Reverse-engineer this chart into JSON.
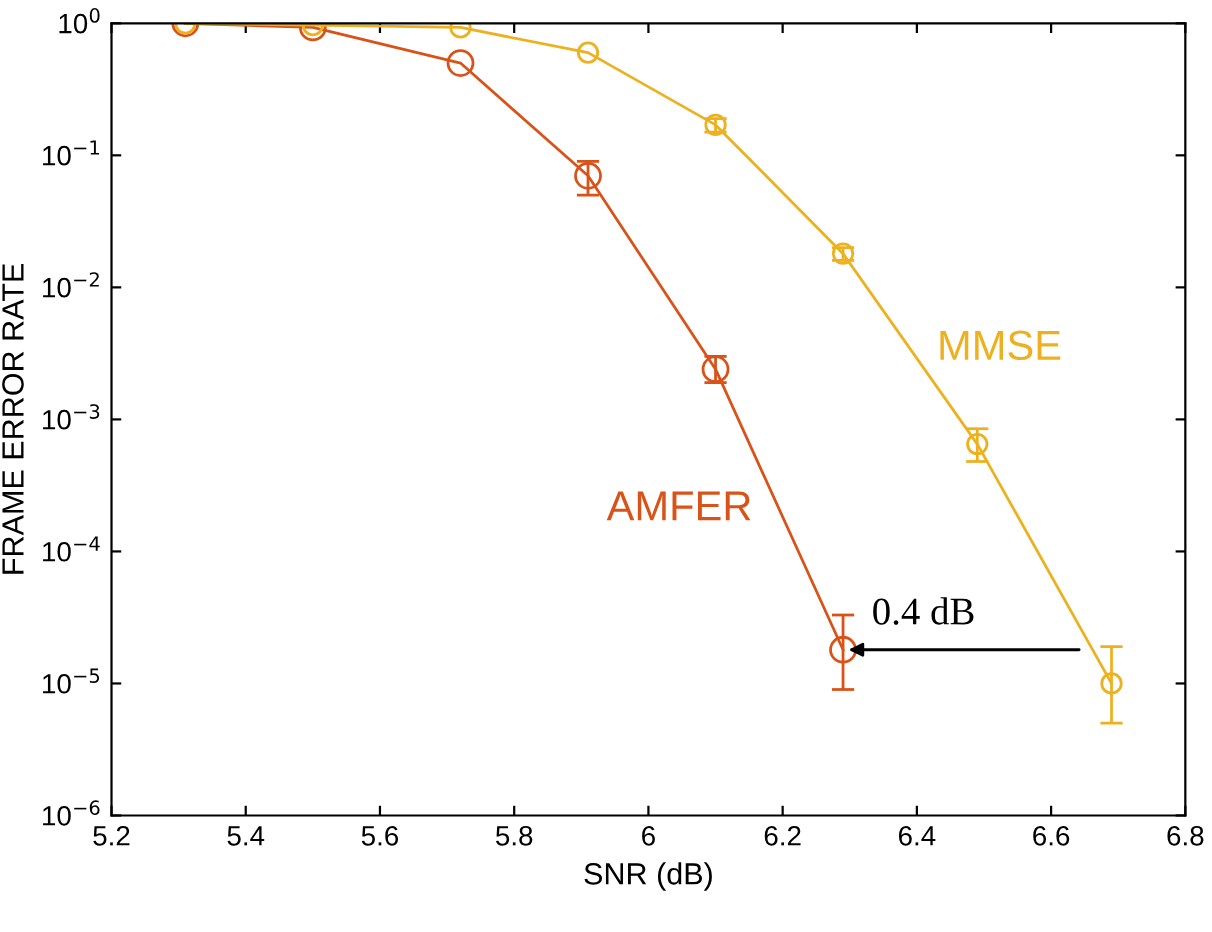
{
  "chart_data": {
    "type": "line",
    "xlabel": "SNR (dB)",
    "ylabel": "FRAME ERROR RATE",
    "log": "y",
    "xlim": [
      5.2,
      6.8
    ],
    "xticks": [
      5.2,
      5.4,
      5.6,
      5.8,
      6,
      6.2,
      6.4,
      6.6,
      6.8
    ],
    "ylim": [
      1e-06,
      1
    ],
    "yticks": [
      {
        "value": 1e-06,
        "label": "10$^{−6}$"
      },
      {
        "value": 1e-05,
        "label": "10$^{−5}$"
      },
      {
        "value": 0.0001,
        "label": "10$^{−4}$"
      },
      {
        "value": 0.001,
        "label": "10$^{−3}$"
      },
      {
        "value": 0.01,
        "label": "10$^{−2}$"
      },
      {
        "value": 0.1,
        "label": "10$^{−1}$"
      },
      {
        "value": 1,
        "label": "10$^{0}$"
      }
    ],
    "grid": false,
    "marker": "circle",
    "line_style": "solid",
    "series": [
      {
        "name": "AMFER",
        "color": "#d95319",
        "x": [
          5.31,
          5.5,
          5.72,
          5.91,
          6.1,
          6.29
        ],
        "values": [
          1,
          0.93,
          0.5,
          0.07,
          0.0024,
          1.8e-05
        ],
        "errors": [
          null,
          null,
          null,
          [
            0.05,
            0.09
          ],
          [
            0.0019,
            0.003
          ],
          [
            9e-06,
            3.3e-05
          ]
        ]
      },
      {
        "name": "MMSE",
        "color": "#edb120",
        "x": [
          5.31,
          5.5,
          5.72,
          5.91,
          6.1,
          6.29,
          6.49,
          6.69
        ],
        "values": [
          1,
          0.97,
          0.93,
          0.6,
          0.17,
          0.018,
          0.00065,
          1e-05
        ],
        "errors": [
          null,
          null,
          null,
          null,
          [
            0.15,
            0.19
          ],
          [
            0.016,
            0.02
          ],
          [
            0.00048,
            0.00085
          ],
          [
            5e-06,
            1.9e-05
          ]
        ]
      }
    ],
    "annotations": [
      {
        "text": "0.4 dB",
        "x": 6.29,
        "y": 1.8e-05
      }
    ]
  }
}
